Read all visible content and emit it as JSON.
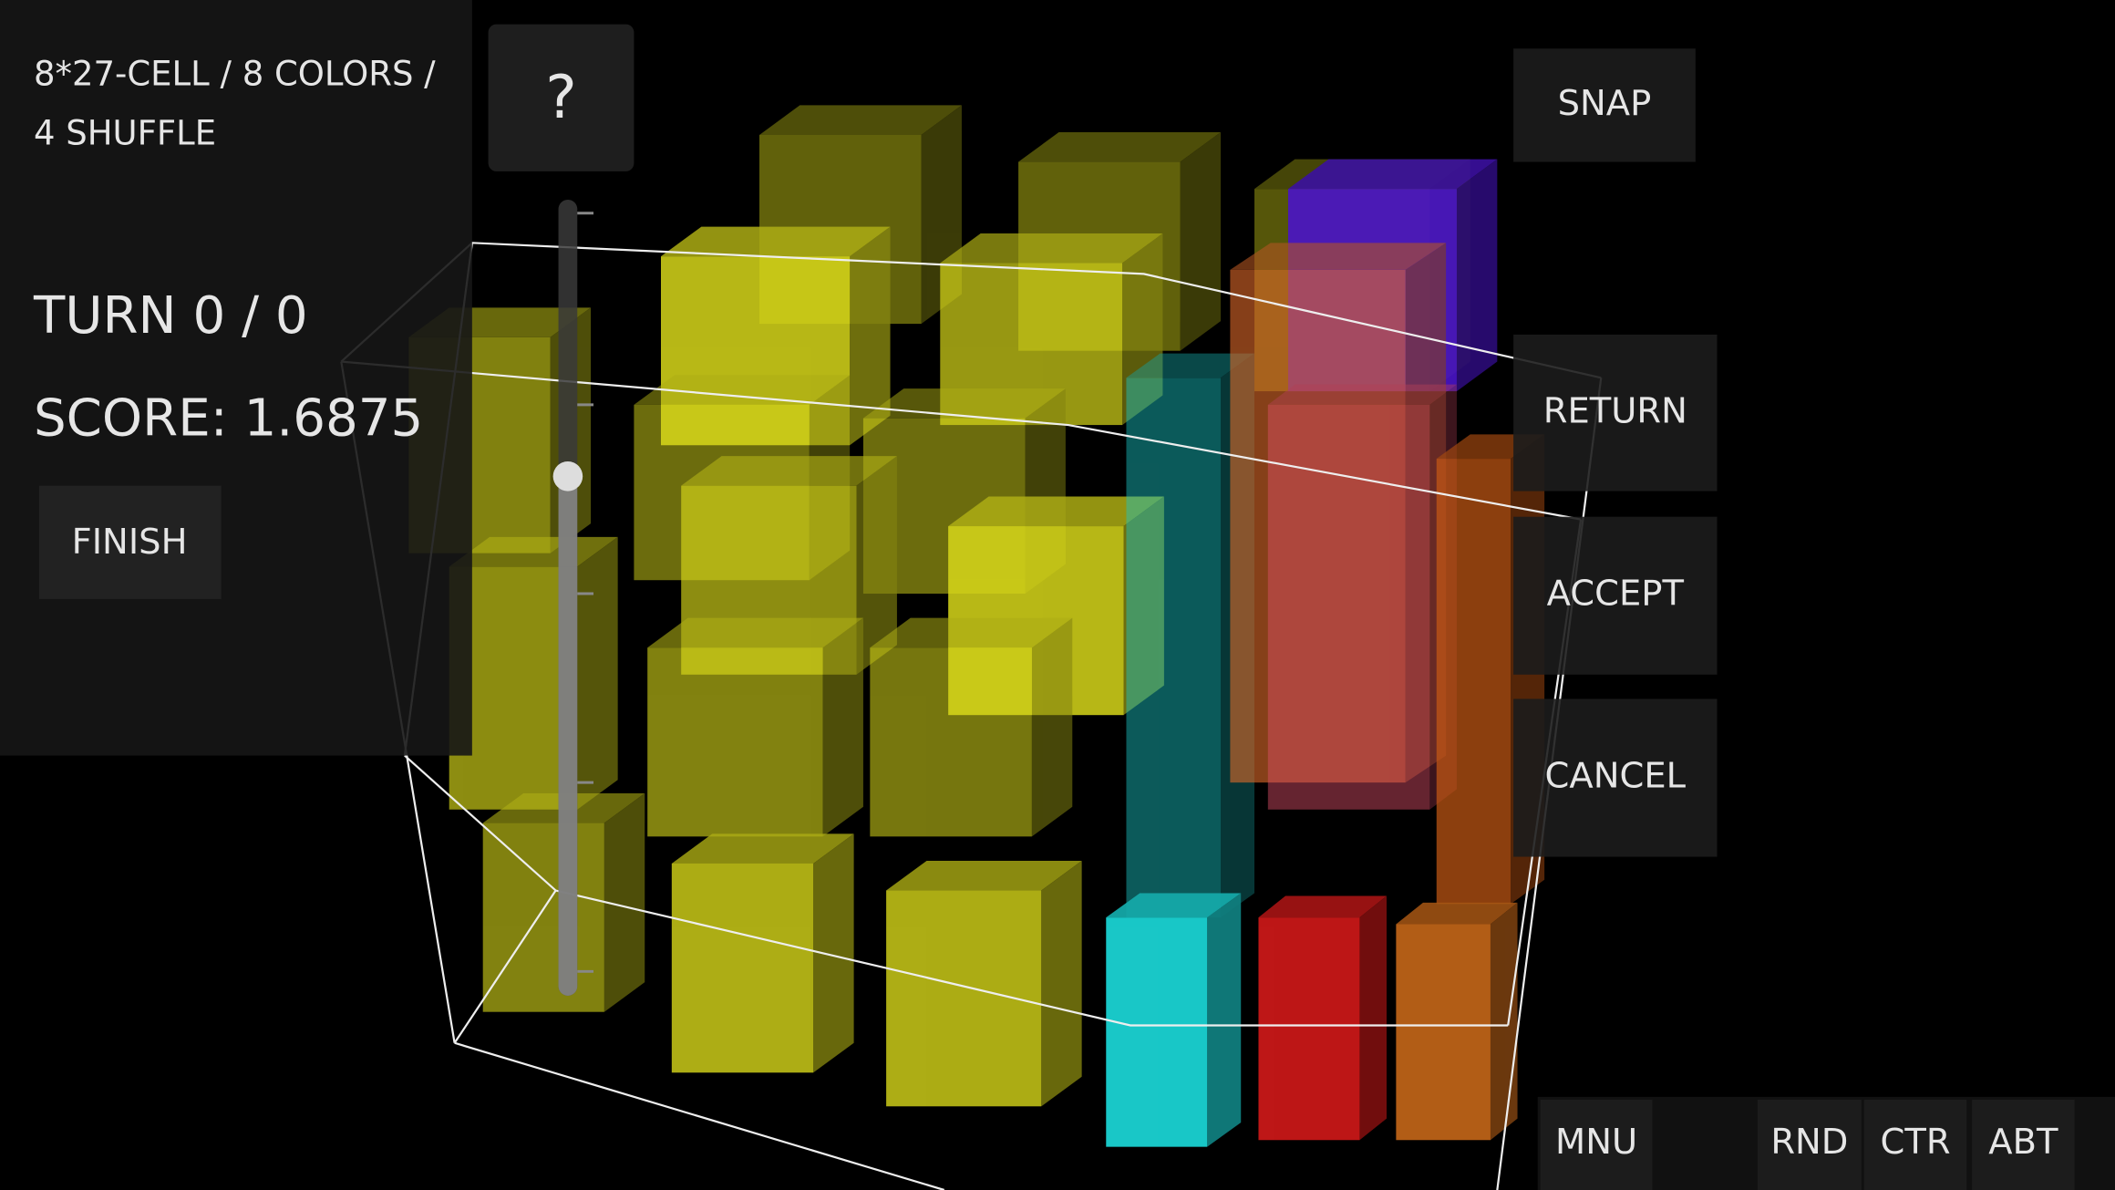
{
  "header": {
    "info_lines": [
      "8*27-CELL / 8 COLORS /",
      "4 SHUFFLE"
    ],
    "turn": "TURN 0 / 0",
    "score": "SCORE: 1.6875",
    "finish": "FINISH"
  },
  "help": "?",
  "side_buttons": [
    "SNAP",
    "RETURN",
    "ACCEPT",
    "CANCEL"
  ],
  "bottom_bar": [
    "MNU",
    "RND",
    "CTR",
    "ABT"
  ]
}
